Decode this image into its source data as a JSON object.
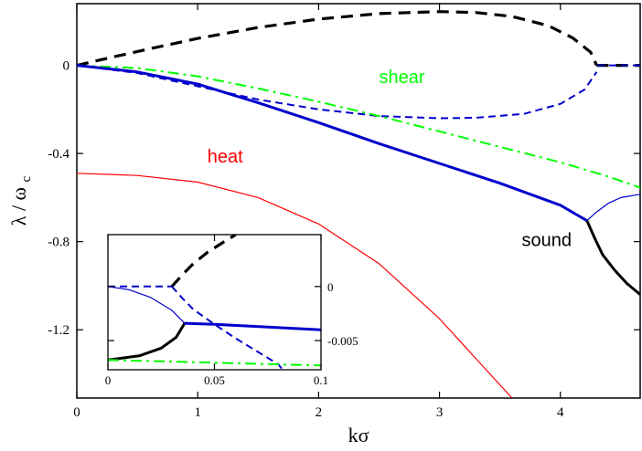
{
  "chart_data": [
    {
      "type": "line",
      "xlabel": "kσ",
      "ylabel_main": "λ / ω",
      "ylabel_sub": "c",
      "xlim": [
        0,
        4.66
      ],
      "ylim": [
        -1.51,
        0.28
      ],
      "xticks": [
        0,
        1,
        2,
        3,
        4
      ],
      "xtick_labels": [
        "0",
        "1",
        "2",
        "3",
        "4"
      ],
      "yticks": [
        0,
        -0.4,
        -0.8,
        -1.2
      ],
      "ytick_labels": [
        "0",
        "-0.4",
        "-0.8",
        "-1.2"
      ],
      "colors": {
        "black": "#000000",
        "blue": "#0000cc",
        "green": "#00ff00",
        "red": "#ff0000"
      },
      "annotations": [
        {
          "text": "shear",
          "x": 2.5,
          "y": -0.08,
          "color": "#00ff00"
        },
        {
          "text": "heat",
          "x": 1.08,
          "y": -0.44,
          "color": "#ff0000"
        },
        {
          "text": "sound",
          "x": 3.68,
          "y": -0.82,
          "color": "#000000"
        }
      ],
      "series": [
        {
          "style": "dashed-bold",
          "color": "#000000",
          "x": [
            0,
            0.3,
            0.6,
            1.0,
            1.5,
            2.0,
            2.5,
            3.0,
            3.3,
            3.6,
            3.9,
            4.1,
            4.25,
            4.3
          ],
          "y": [
            0,
            0.038,
            0.075,
            0.122,
            0.172,
            0.21,
            0.235,
            0.244,
            0.24,
            0.222,
            0.18,
            0.125,
            0.06,
            0.0
          ]
        },
        {
          "style": "dashed-bold",
          "color": "#000000",
          "x": [
            4.3,
            4.66
          ],
          "y": [
            0.0,
            0.0
          ]
        },
        {
          "style": "dashed",
          "color": "#0000cc",
          "x": [
            4.66,
            4.3
          ],
          "y": [
            0.0,
            0.0
          ]
        },
        {
          "style": "dashed",
          "color": "#0000cc",
          "x": [
            0,
            0.5,
            1.0,
            1.5,
            2.0,
            2.5,
            3.0,
            3.3,
            3.7,
            4.0,
            4.2,
            4.3
          ],
          "y": [
            0,
            -0.035,
            -0.095,
            -0.155,
            -0.2,
            -0.23,
            -0.24,
            -0.238,
            -0.22,
            -0.175,
            -0.11,
            -0.03
          ]
        },
        {
          "style": "dash-dot",
          "color": "#00ff00",
          "x": [
            0,
            0.5,
            1.0,
            1.5,
            2.0,
            2.5,
            3.0,
            3.5,
            4.0,
            4.4,
            4.66
          ],
          "y": [
            0,
            -0.012,
            -0.05,
            -0.105,
            -0.165,
            -0.23,
            -0.3,
            -0.37,
            -0.44,
            -0.505,
            -0.555
          ]
        },
        {
          "style": "solid-bold",
          "color": "#0000cc",
          "x": [
            0,
            0.5,
            1.0,
            1.5,
            2.0,
            2.5,
            3.0,
            3.5,
            4.0,
            4.22
          ],
          "y": [
            0,
            -0.03,
            -0.085,
            -0.17,
            -0.26,
            -0.355,
            -0.445,
            -0.535,
            -0.635,
            -0.705
          ]
        },
        {
          "style": "solid",
          "color": "#0000cc",
          "x": [
            4.22,
            4.3,
            4.4,
            4.5,
            4.66
          ],
          "y": [
            -0.705,
            -0.665,
            -0.625,
            -0.6,
            -0.585
          ]
        },
        {
          "style": "solid-bold",
          "color": "#000000",
          "x": [
            4.22,
            4.28,
            4.35,
            4.45,
            4.55,
            4.66
          ],
          "y": [
            -0.705,
            -0.78,
            -0.86,
            -0.93,
            -0.99,
            -1.04
          ]
        },
        {
          "style": "solid",
          "color": "#ff0000",
          "x": [
            0,
            0.5,
            1.0,
            1.5,
            2.0,
            2.5,
            3.0,
            3.3,
            3.6
          ],
          "y": [
            -0.49,
            -0.5,
            -0.53,
            -0.6,
            -0.72,
            -0.9,
            -1.15,
            -1.33,
            -1.51
          ]
        }
      ]
    },
    {
      "type": "line",
      "xlim": [
        0,
        0.1
      ],
      "ylim": [
        -0.0077,
        0.0048
      ],
      "xticks": [
        0,
        0.05,
        0.1
      ],
      "xtick_labels": [
        "0",
        "0.05",
        "0.1"
      ],
      "yticks": [
        0,
        -0.005
      ],
      "ytick_labels": [
        "0",
        "-0.005"
      ],
      "series": [
        {
          "style": "dashed",
          "color": "#0000cc",
          "x": [
            0,
            0.03
          ],
          "y": [
            0,
            0
          ]
        },
        {
          "style": "dashed-bold",
          "color": "#000000",
          "x": [
            0.03,
            0.035,
            0.04,
            0.047,
            0.055,
            0.06
          ],
          "y": [
            0,
            0.0011,
            0.0021,
            0.0032,
            0.0042,
            0.0048
          ]
        },
        {
          "style": "dashed",
          "color": "#0000cc",
          "x": [
            0.03,
            0.035,
            0.04,
            0.05,
            0.06,
            0.07,
            0.08,
            0.082
          ],
          "y": [
            0,
            -0.0011,
            -0.0021,
            -0.0035,
            -0.0048,
            -0.006,
            -0.0072,
            -0.0077
          ]
        },
        {
          "style": "solid",
          "color": "#0000cc",
          "x": [
            0,
            0.01,
            0.02,
            0.03,
            0.036
          ],
          "y": [
            0,
            -0.0003,
            -0.001,
            -0.0022,
            -0.0034
          ]
        },
        {
          "style": "solid-bold",
          "color": "#000000",
          "x": [
            0,
            0.015,
            0.025,
            0.032,
            0.036
          ],
          "y": [
            -0.0068,
            -0.0064,
            -0.0057,
            -0.0047,
            -0.0034
          ]
        },
        {
          "style": "solid-bold",
          "color": "#0000cc",
          "x": [
            0.036,
            0.05,
            0.07,
            0.1
          ],
          "y": [
            -0.0034,
            -0.0035,
            -0.0037,
            -0.004
          ]
        },
        {
          "style": "dash-dot",
          "color": "#00ff00",
          "x": [
            0,
            0.02,
            0.04,
            0.06,
            0.08,
            0.1
          ],
          "y": [
            -0.0068,
            -0.0069,
            -0.007,
            -0.0071,
            -0.0072,
            -0.0073
          ]
        }
      ]
    }
  ]
}
